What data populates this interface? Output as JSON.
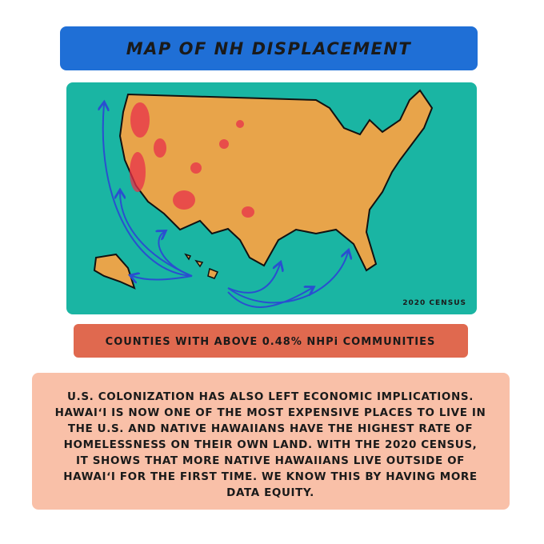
{
  "header": {
    "title": "MAP OF NH DISPLACEMENT"
  },
  "map": {
    "source": "2020 CENSUS"
  },
  "caption": "COUNTIES WITH ABOVE 0.48% NHPi COMMUNITIES",
  "body": {
    "lines": [
      "U.S. COLONIZATION HAS ALSO LEFT ECONOMIC IMPLICATIONS.",
      "HAWAIʻI IS NOW ONE OF THE MOST EXPENSIVE PLACES TO LIVE IN",
      "THE U.S. AND NATIVE HAWAIIANS HAVE THE HIGHEST RATE OF",
      "HOMELESSNESS ON THEIR OWN LAND. WITH THE 2020 CENSUS,",
      "IT SHOWS THAT MORE NATIVE HAWAIIANS LIVE OUTSIDE OF",
      "HAWAIʻI FOR THE FIRST TIME. WE KNOW THIS BY HAVING MORE",
      "DATA EQUITY."
    ]
  }
}
